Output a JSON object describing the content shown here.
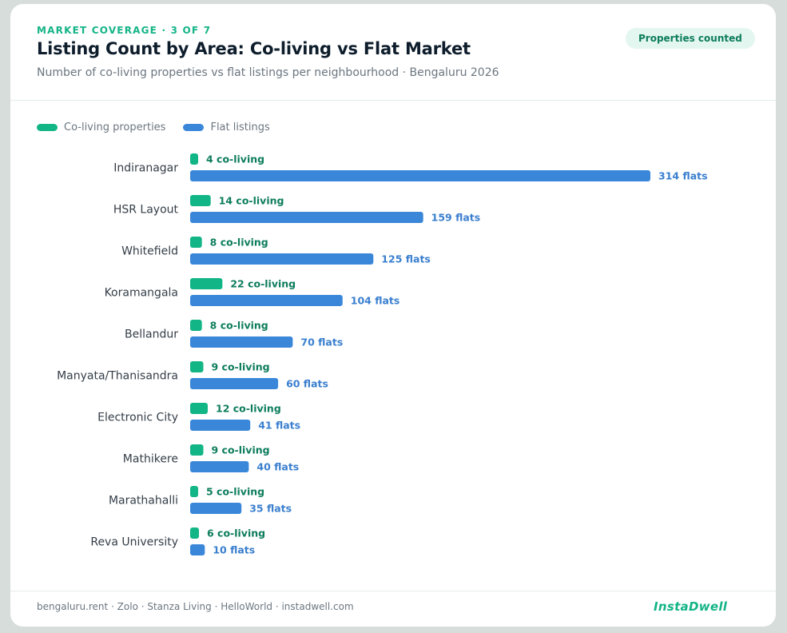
{
  "header": {
    "eyebrow": "MARKET COVERAGE · 3 OF 7",
    "title": "Listing Count by Area: Co-living vs Flat Market",
    "subtitle": "Number of co-living properties vs flat listings per neighbourhood · Bengaluru 2026",
    "badge": "Properties counted"
  },
  "footer": {
    "sources": "bengaluru.rent · Zolo · Stanza Living · HelloWorld · instadwell.com",
    "brand": "InstaDwell"
  },
  "colors": {
    "coliving": "#12b585",
    "flats": "#3a87da",
    "coliving_label": "#0d7d5c",
    "flats_label": "#3a7fcf"
  },
  "chart_data": {
    "type": "bar",
    "orientation": "horizontal",
    "categories": [
      "Indiranagar",
      "HSR Layout",
      "Whitefield",
      "Koramangala",
      "Bellandur",
      "Manyata/Thanisandra",
      "Electronic City",
      "Mathikere",
      "Marathahalli",
      "Reva University"
    ],
    "series": [
      {
        "name": "Co-living properties",
        "values": [
          4,
          14,
          8,
          22,
          8,
          9,
          12,
          9,
          5,
          6
        ],
        "label_suffix": " co-living"
      },
      {
        "name": "Flat listings",
        "values": [
          314,
          159,
          125,
          104,
          70,
          60,
          41,
          40,
          35,
          10
        ],
        "label_suffix": " flats"
      }
    ],
    "legend": "top-left"
  }
}
